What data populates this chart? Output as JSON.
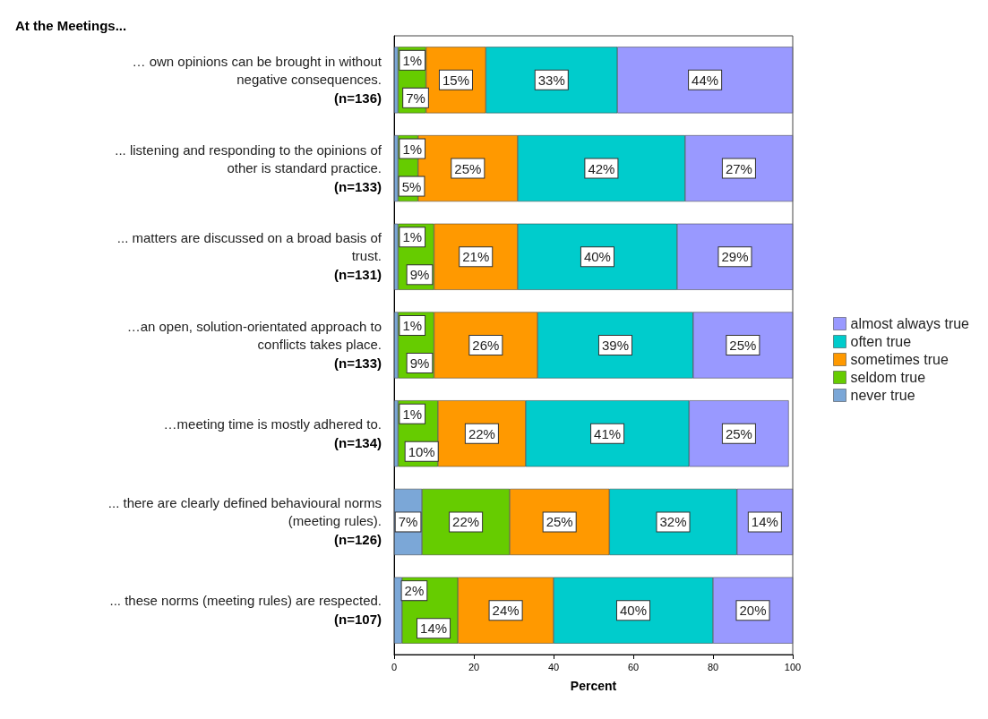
{
  "chart_data": {
    "type": "bar",
    "orientation": "horizontal",
    "stacked": true,
    "title": "At the Meetings...",
    "xlabel": "Percent",
    "categories": [
      "… own opinions can be brought in without\nnegative consequences.\n(n=136)",
      "... listening and responding to the opinions of\nother is standard practice.\n(n=133)",
      "... matters are discussed on a broad basis of\ntrust.\n(n=131)",
      "…an open, solution-orientated approach to\nconflicts takes place.\n(n=133)",
      "…meeting time is mostly adhered to.\n(n=134)",
      "... there are clearly defined behavioural norms\n(meeting rules).\n(n=126)",
      "... these norms (meeting rules) are respected.\n(n=107)"
    ],
    "series": [
      {
        "name": "never true",
        "color": "#7ba7d7",
        "values": [
          1,
          1,
          1,
          1,
          1,
          7,
          2
        ],
        "value_labels": [
          "1%",
          "1%",
          "1%",
          "1%",
          "1%",
          "7%",
          "2%"
        ]
      },
      {
        "name": "seldom true",
        "color": "#66cc00",
        "values": [
          7,
          5,
          9,
          9,
          10,
          22,
          14
        ],
        "value_labels": [
          "7%",
          "5%",
          "9%",
          "9%",
          "10%",
          "22%",
          "14%"
        ]
      },
      {
        "name": "sometimes true",
        "color": "#ff9900",
        "values": [
          15,
          25,
          21,
          26,
          22,
          25,
          24
        ],
        "value_labels": [
          "15%",
          "25%",
          "21%",
          "26%",
          "22%",
          "25%",
          "24%"
        ]
      },
      {
        "name": "often true",
        "color": "#00cccc",
        "values": [
          33,
          42,
          40,
          39,
          41,
          32,
          40
        ],
        "value_labels": [
          "33%",
          "42%",
          "40%",
          "39%",
          "41%",
          "32%",
          "40%"
        ]
      },
      {
        "name": "almost always true",
        "color": "#9999ff",
        "values": [
          44,
          27,
          29,
          25,
          25,
          14,
          20
        ],
        "value_labels": [
          "44%",
          "27%",
          "29%",
          "25%",
          "25%",
          "14%",
          "20%"
        ]
      }
    ],
    "xlim": [
      0,
      100
    ],
    "xticks": [
      0,
      20,
      40,
      60,
      80,
      100
    ],
    "grid": false,
    "legend": "right"
  }
}
